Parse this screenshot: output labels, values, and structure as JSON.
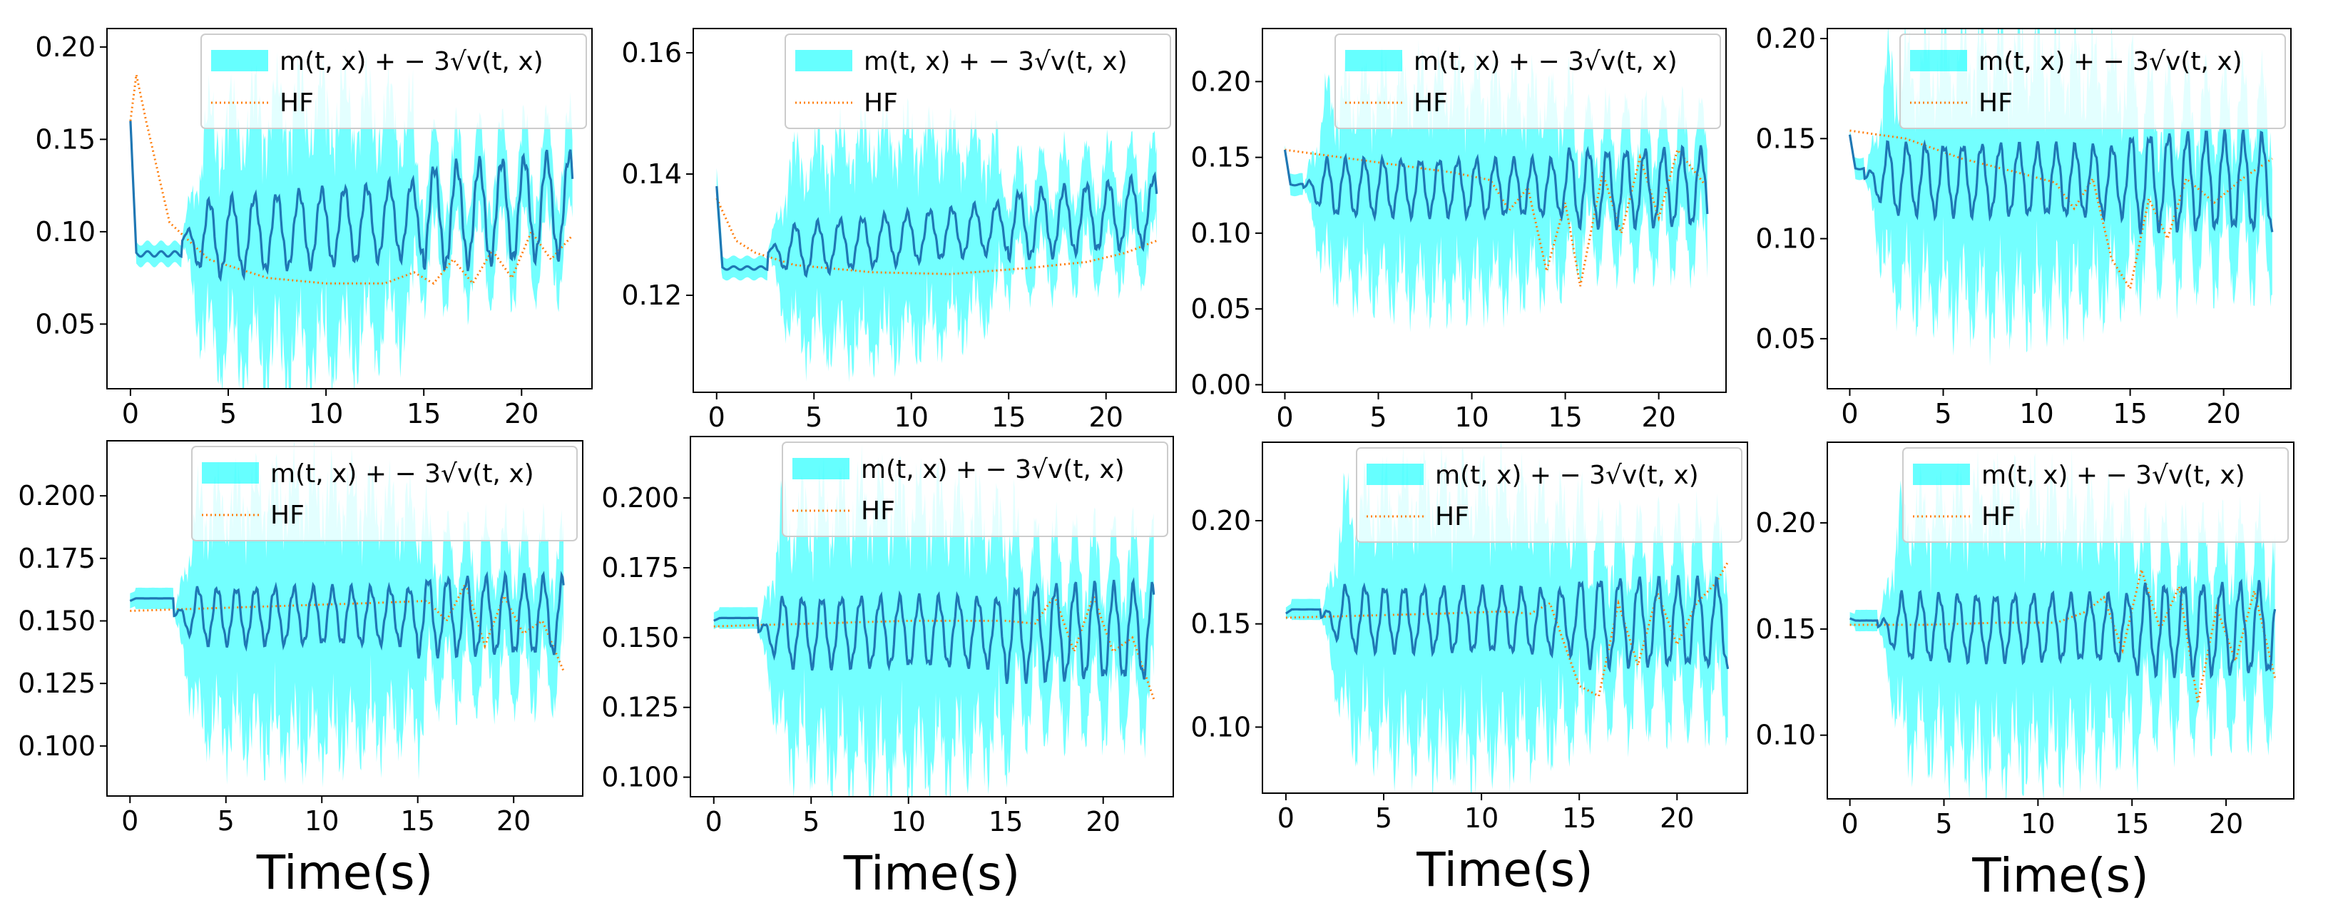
{
  "figure": {
    "xlabel": "Time(s)",
    "legend_band_label": "m(t, x) + − 3√v(t, x)",
    "legend_line_label": "HF",
    "colors": {
      "band": "#00FFFF",
      "mean": "#1f77b4",
      "hf": "#ff7f0e"
    }
  },
  "chart_data": [
    {
      "type": "line",
      "title": "",
      "xlabel": "",
      "ylabel": "",
      "xlim": [
        -1.2,
        23.6
      ],
      "ylim": [
        0.015,
        0.21
      ],
      "x_ticks": [
        0,
        5,
        10,
        15,
        20
      ],
      "x_tick_labels": [
        "0",
        "5",
        "10",
        "15",
        "20"
      ],
      "y_ticks": [
        0.05,
        0.1,
        0.15,
        0.2
      ],
      "y_tick_labels": [
        "0.05",
        "0.10",
        "0.15",
        "0.20"
      ],
      "legend": "top-right",
      "series": [
        {
          "name": "m(t, x) + − 3√v(t, x)",
          "kind": "band",
          "summary": "mean with ±3 std band",
          "params": {
            "init": 0.16,
            "plateau": 0.088,
            "osc_start": 2.6,
            "center_start": 0.095,
            "center_end": 0.115,
            "amp": 0.02,
            "period": 1.15,
            "band_start": 0.05,
            "band_max": 0.065,
            "band_shrink_t": 14.5,
            "band_end": 0.025
          }
        },
        {
          "name": "HF",
          "kind": "line",
          "style": "dotted",
          "points": [
            [
              0,
              0.16
            ],
            [
              0.3,
              0.185
            ],
            [
              0.8,
              0.16
            ],
            [
              2,
              0.105
            ],
            [
              4,
              0.085
            ],
            [
              7,
              0.075
            ],
            [
              10,
              0.072
            ],
            [
              13,
              0.072
            ],
            [
              14.5,
              0.078
            ],
            [
              15.5,
              0.072
            ],
            [
              16.5,
              0.085
            ],
            [
              17.5,
              0.072
            ],
            [
              18.5,
              0.09
            ],
            [
              19.5,
              0.075
            ],
            [
              20.5,
              0.1
            ],
            [
              21.5,
              0.085
            ],
            [
              22.6,
              0.098
            ]
          ]
        }
      ]
    },
    {
      "type": "line",
      "title": "",
      "xlabel": "",
      "ylabel": "",
      "xlim": [
        -1.2,
        23.6
      ],
      "ylim": [
        0.104,
        0.164
      ],
      "x_ticks": [
        0,
        5,
        10,
        15,
        20
      ],
      "x_tick_labels": [
        "0",
        "5",
        "10",
        "15",
        "20"
      ],
      "y_ticks": [
        0.12,
        0.14,
        0.16
      ],
      "y_tick_labels": [
        "0.12",
        "0.14",
        "0.16"
      ],
      "legend": "top-right",
      "series": [
        {
          "name": "m(t, x) + − 3√v(t, x)",
          "kind": "band",
          "summary": "mean with ±3 std band",
          "params": {
            "init": 0.138,
            "plateau": 0.1245,
            "osc_start": 2.6,
            "center_start": 0.127,
            "center_end": 0.134,
            "amp": 0.004,
            "period": 1.15,
            "band_start": 0.012,
            "band_max": 0.016,
            "band_shrink_t": 14.5,
            "band_end": 0.007
          }
        },
        {
          "name": "HF",
          "kind": "line",
          "style": "dotted",
          "points": [
            [
              0,
              0.136
            ],
            [
              1,
              0.129
            ],
            [
              2,
              0.127
            ],
            [
              4,
              0.125
            ],
            [
              8,
              0.1238
            ],
            [
              12,
              0.1235
            ],
            [
              16,
              0.1245
            ],
            [
              19,
              0.1255
            ],
            [
              21,
              0.127
            ],
            [
              22.6,
              0.129
            ]
          ]
        }
      ]
    },
    {
      "type": "line",
      "title": "",
      "xlabel": "",
      "ylabel": "",
      "xlim": [
        -1.2,
        23.6
      ],
      "ylim": [
        -0.005,
        0.235
      ],
      "x_ticks": [
        0,
        5,
        10,
        15,
        20
      ],
      "x_tick_labels": [
        "0",
        "5",
        "10",
        "15",
        "20"
      ],
      "y_ticks": [
        0.0,
        0.05,
        0.1,
        0.15,
        0.2
      ],
      "y_tick_labels": [
        "0.00",
        "0.05",
        "0.10",
        "0.15",
        "0.20"
      ],
      "legend": "top-right",
      "series": [
        {
          "name": "m(t, x) + − 3√v(t, x)",
          "kind": "band",
          "summary": "mean with ±3 std band",
          "params": {
            "init": 0.155,
            "plateau": 0.132,
            "osc_start": 1.0,
            "center_start": 0.13,
            "center_end": 0.13,
            "amp": 0.018,
            "period": 1.0,
            "band_start": 0.05,
            "band_max": 0.065,
            "band_shrink_t": 15.5,
            "band_end": 0.035
          }
        },
        {
          "name": "HF",
          "kind": "line",
          "style": "dotted",
          "points": [
            [
              0,
              0.155
            ],
            [
              3,
              0.15
            ],
            [
              6,
              0.145
            ],
            [
              9,
              0.14
            ],
            [
              11,
              0.135
            ],
            [
              12,
              0.115
            ],
            [
              13,
              0.13
            ],
            [
              14,
              0.075
            ],
            [
              15,
              0.12
            ],
            [
              15.8,
              0.065
            ],
            [
              17,
              0.14
            ],
            [
              18,
              0.1
            ],
            [
              19,
              0.15
            ],
            [
              20,
              0.11
            ],
            [
              21,
              0.155
            ],
            [
              22.6,
              0.13
            ]
          ]
        }
      ]
    },
    {
      "type": "line",
      "title": "",
      "xlabel": "",
      "ylabel": "",
      "xlim": [
        -1.2,
        23.6
      ],
      "ylim": [
        0.025,
        0.205
      ],
      "x_ticks": [
        0,
        5,
        10,
        15,
        20
      ],
      "x_tick_labels": [
        "0",
        "5",
        "10",
        "15",
        "20"
      ],
      "y_ticks": [
        0.05,
        0.1,
        0.15,
        0.2
      ],
      "y_tick_labels": [
        "0.05",
        "0.10",
        "0.15",
        "0.20"
      ],
      "legend": "top-right",
      "series": [
        {
          "name": "m(t, x) + − 3√v(t, x)",
          "kind": "band",
          "summary": "mean with ±3 std band",
          "params": {
            "init": 0.152,
            "plateau": 0.135,
            "osc_start": 0.8,
            "center_start": 0.13,
            "center_end": 0.128,
            "amp": 0.017,
            "period": 1.0,
            "band_start": 0.045,
            "band_max": 0.06,
            "band_shrink_t": 15.5,
            "band_end": 0.035
          }
        },
        {
          "name": "HF",
          "kind": "line",
          "style": "dotted",
          "points": [
            [
              0,
              0.154
            ],
            [
              3,
              0.15
            ],
            [
              6,
              0.14
            ],
            [
              9,
              0.133
            ],
            [
              11,
              0.128
            ],
            [
              12,
              0.115
            ],
            [
              13,
              0.13
            ],
            [
              14,
              0.09
            ],
            [
              15,
              0.075
            ],
            [
              16,
              0.12
            ],
            [
              17,
              0.1
            ],
            [
              18,
              0.13
            ],
            [
              19.5,
              0.118
            ],
            [
              21,
              0.13
            ],
            [
              22.6,
              0.14
            ]
          ]
        }
      ]
    },
    {
      "type": "line",
      "title": "",
      "xlabel": "Time(s)",
      "ylabel": "",
      "xlim": [
        -1.2,
        23.6
      ],
      "ylim": [
        0.08,
        0.222
      ],
      "x_ticks": [
        0,
        5,
        10,
        15,
        20
      ],
      "x_tick_labels": [
        "0",
        "5",
        "10",
        "15",
        "20"
      ],
      "y_ticks": [
        0.1,
        0.125,
        0.15,
        0.175,
        0.2
      ],
      "y_tick_labels": [
        "0.100",
        "0.125",
        "0.150",
        "0.175",
        "0.200"
      ],
      "legend": "top-right",
      "series": [
        {
          "name": "m(t, x) + − 3√v(t, x)",
          "kind": "band",
          "summary": "mean with ±3 std band",
          "params": {
            "init": 0.158,
            "plateau": 0.159,
            "osc_start": 2.3,
            "center_start": 0.152,
            "center_end": 0.152,
            "amp": 0.011,
            "period": 1.0,
            "band_start": 0.038,
            "band_max": 0.048,
            "band_shrink_t": 15.5,
            "band_end": 0.024
          }
        },
        {
          "name": "HF",
          "kind": "line",
          "style": "dotted",
          "points": [
            [
              0,
              0.154
            ],
            [
              4,
              0.155
            ],
            [
              8,
              0.156
            ],
            [
              12,
              0.157
            ],
            [
              15.5,
              0.158
            ],
            [
              16.5,
              0.15
            ],
            [
              17.5,
              0.165
            ],
            [
              18.5,
              0.14
            ],
            [
              19.5,
              0.16
            ],
            [
              20.5,
              0.145
            ],
            [
              21.5,
              0.15
            ],
            [
              22.6,
              0.13
            ]
          ]
        }
      ]
    },
    {
      "type": "line",
      "title": "",
      "xlabel": "Time(s)",
      "ylabel": "",
      "xlim": [
        -1.2,
        23.6
      ],
      "ylim": [
        0.093,
        0.222
      ],
      "x_ticks": [
        0,
        5,
        10,
        15,
        20
      ],
      "x_tick_labels": [
        "0",
        "5",
        "10",
        "15",
        "20"
      ],
      "y_ticks": [
        0.1,
        0.125,
        0.15,
        0.175,
        0.2
      ],
      "y_tick_labels": [
        "0.100",
        "0.125",
        "0.150",
        "0.175",
        "0.200"
      ],
      "legend": "top-right",
      "series": [
        {
          "name": "m(t, x) + − 3√v(t, x)",
          "kind": "band",
          "summary": "mean with ±3 std band",
          "params": {
            "init": 0.156,
            "plateau": 0.157,
            "osc_start": 2.3,
            "center_start": 0.152,
            "center_end": 0.152,
            "amp": 0.012,
            "period": 1.0,
            "band_start": 0.035,
            "band_max": 0.045,
            "band_shrink_t": 15.5,
            "band_end": 0.024
          }
        },
        {
          "name": "HF",
          "kind": "line",
          "style": "dotted",
          "points": [
            [
              0,
              0.154
            ],
            [
              5,
              0.155
            ],
            [
              10,
              0.156
            ],
            [
              15,
              0.156
            ],
            [
              16.5,
              0.155
            ],
            [
              17.5,
              0.165
            ],
            [
              18.5,
              0.145
            ],
            [
              19.5,
              0.165
            ],
            [
              20.5,
              0.145
            ],
            [
              21.5,
              0.15
            ],
            [
              22.6,
              0.128
            ]
          ]
        }
      ]
    },
    {
      "type": "line",
      "title": "",
      "xlabel": "Time(s)",
      "ylabel": "",
      "xlim": [
        -1.2,
        23.6
      ],
      "ylim": [
        0.068,
        0.238
      ],
      "x_ticks": [
        0,
        5,
        10,
        15,
        20
      ],
      "x_tick_labels": [
        "0",
        "5",
        "10",
        "15",
        "20"
      ],
      "y_ticks": [
        0.1,
        0.15,
        0.2
      ],
      "y_tick_labels": [
        "0.10",
        "0.15",
        "0.20"
      ],
      "legend": "top-right",
      "series": [
        {
          "name": "m(t, x) + − 3√v(t, x)",
          "kind": "band",
          "summary": "mean with ±3 std band",
          "params": {
            "init": 0.155,
            "plateau": 0.157,
            "osc_start": 1.8,
            "center_start": 0.153,
            "center_end": 0.15,
            "amp": 0.015,
            "period": 1.0,
            "band_start": 0.045,
            "band_max": 0.06,
            "band_shrink_t": 15.5,
            "band_end": 0.035
          }
        },
        {
          "name": "HF",
          "kind": "line",
          "style": "dotted",
          "points": [
            [
              0,
              0.153
            ],
            [
              4,
              0.154
            ],
            [
              8,
              0.155
            ],
            [
              11,
              0.156
            ],
            [
              12.5,
              0.155
            ],
            [
              13.5,
              0.16
            ],
            [
              15,
              0.12
            ],
            [
              16,
              0.115
            ],
            [
              17,
              0.16
            ],
            [
              18,
              0.13
            ],
            [
              19,
              0.165
            ],
            [
              20,
              0.14
            ],
            [
              21,
              0.16
            ],
            [
              22,
              0.17
            ],
            [
              22.6,
              0.18
            ]
          ]
        }
      ]
    },
    {
      "type": "line",
      "title": "",
      "xlabel": "Time(s)",
      "ylabel": "",
      "xlim": [
        -1.2,
        23.6
      ],
      "ylim": [
        0.07,
        0.238
      ],
      "x_ticks": [
        0,
        5,
        10,
        15,
        20
      ],
      "x_tick_labels": [
        "0",
        "5",
        "10",
        "15",
        "20"
      ],
      "y_ticks": [
        0.1,
        0.15,
        0.2
      ],
      "y_tick_labels": [
        "0.10",
        "0.15",
        "0.20"
      ],
      "legend": "top-right",
      "series": [
        {
          "name": "m(t, x) + − 3√v(t, x)",
          "kind": "band",
          "summary": "mean with ±3 std band",
          "params": {
            "init": 0.155,
            "plateau": 0.154,
            "osc_start": 1.5,
            "center_start": 0.151,
            "center_end": 0.15,
            "amp": 0.015,
            "period": 1.0,
            "band_start": 0.045,
            "band_max": 0.058,
            "band_shrink_t": 15.5,
            "band_end": 0.035
          }
        },
        {
          "name": "HF",
          "kind": "line",
          "style": "dotted",
          "points": [
            [
              0,
              0.152
            ],
            [
              4,
              0.152
            ],
            [
              8,
              0.153
            ],
            [
              11,
              0.153
            ],
            [
              12.5,
              0.158
            ],
            [
              13.5,
              0.165
            ],
            [
              14.5,
              0.14
            ],
            [
              15.5,
              0.178
            ],
            [
              16.5,
              0.15
            ],
            [
              17.5,
              0.17
            ],
            [
              18.5,
              0.115
            ],
            [
              19.5,
              0.16
            ],
            [
              20.5,
              0.135
            ],
            [
              21.5,
              0.168
            ],
            [
              22.6,
              0.127
            ]
          ]
        }
      ]
    }
  ]
}
